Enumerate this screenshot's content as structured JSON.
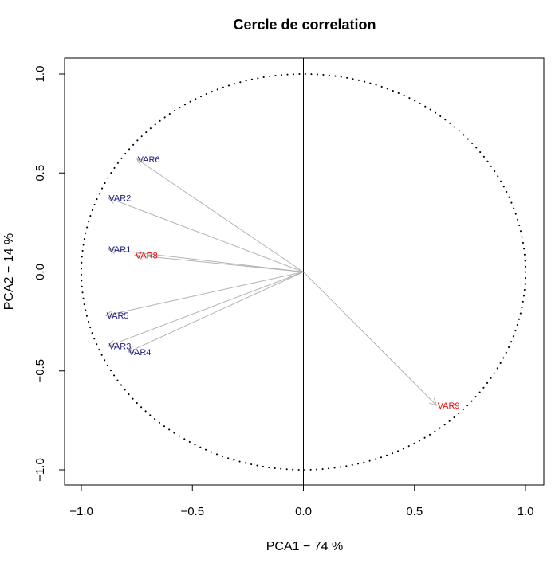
{
  "chart_data": {
    "type": "scatter",
    "title": "Cercle de correlation",
    "xlabel": "PCA1 −  74 %",
    "ylabel": "PCA2 − 14 %",
    "xlim": [
      -1.0,
      1.0
    ],
    "ylim": [
      -1.0,
      1.0
    ],
    "xticks": [
      "−1.0",
      "−0.5",
      "0.0",
      "0.5",
      "1.0"
    ],
    "yticks": [
      "−1.0",
      "−0.5",
      "0.0",
      "0.5",
      "1.0"
    ],
    "grid": false,
    "circle": "unit circle, dotted",
    "colors": {
      "blue": "#1a1a80",
      "red": "#ff0000",
      "arrow": "#b3b3b3"
    },
    "vectors": [
      {
        "name": "VAR1",
        "x": -0.88,
        "y": 0.115,
        "color": "blue"
      },
      {
        "name": "VAR2",
        "x": -0.88,
        "y": 0.375,
        "color": "blue"
      },
      {
        "name": "VAR3",
        "x": -0.88,
        "y": -0.375,
        "color": "blue"
      },
      {
        "name": "VAR4",
        "x": -0.79,
        "y": -0.405,
        "color": "blue"
      },
      {
        "name": "VAR5",
        "x": -0.89,
        "y": -0.22,
        "color": "blue"
      },
      {
        "name": "VAR6",
        "x": -0.75,
        "y": 0.57,
        "color": "blue"
      },
      {
        "name": "VAR8",
        "x": -0.76,
        "y": 0.085,
        "color": "red"
      },
      {
        "name": "VAR9",
        "x": 0.6,
        "y": -0.675,
        "color": "red"
      }
    ]
  }
}
